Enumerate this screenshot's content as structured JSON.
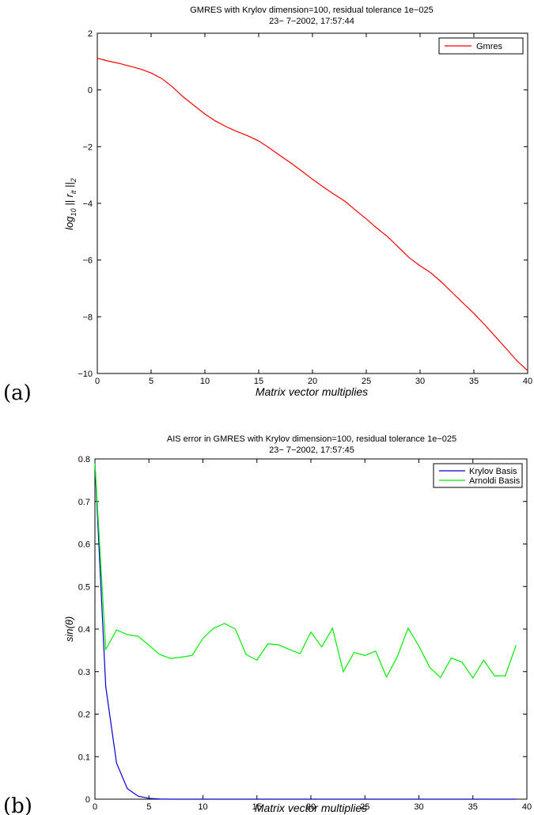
{
  "chart_data": [
    {
      "panel_label": "(a)",
      "type": "line",
      "title": "GMRES with Krylov dimension=100, residual tolerance 1e−025",
      "subtitle": "23− 7−2002, 17:57:44",
      "xlabel": "Matrix vector multiplies",
      "ylabel": "log10 || r_it ||2",
      "ylabel_parts": {
        "main": "log",
        "sub1": "10",
        "mid": " || r",
        "sub2": "it",
        "end": " ||",
        "sub3": "2"
      },
      "xlim": [
        0,
        40
      ],
      "ylim": [
        -10,
        2
      ],
      "xticks": [
        0,
        5,
        10,
        15,
        20,
        25,
        30,
        35,
        40
      ],
      "yticks": [
        2,
        0,
        -2,
        -4,
        -6,
        -8,
        -10
      ],
      "ytick_labels": [
        "2",
        "0",
        "−2",
        "−4",
        "−6",
        "−8",
        "−10"
      ],
      "grid": false,
      "legend_position": "top-right",
      "series": [
        {
          "name": "Gmres",
          "color": "#ff0000",
          "x": [
            0,
            1,
            2,
            3,
            4,
            5,
            6,
            7,
            8,
            9,
            10,
            11,
            12,
            13,
            14,
            15,
            16,
            17,
            18,
            19,
            20,
            21,
            22,
            23,
            24,
            25,
            26,
            27,
            28,
            29,
            30,
            31,
            32,
            33,
            34,
            35,
            36,
            37,
            38,
            39,
            40
          ],
          "y": [
            1.12,
            1.02,
            0.94,
            0.84,
            0.74,
            0.6,
            0.4,
            0.1,
            -0.25,
            -0.55,
            -0.85,
            -1.1,
            -1.3,
            -1.47,
            -1.62,
            -1.8,
            -2.05,
            -2.32,
            -2.58,
            -2.86,
            -3.15,
            -3.42,
            -3.68,
            -3.92,
            -4.24,
            -4.55,
            -4.88,
            -5.18,
            -5.55,
            -5.92,
            -6.2,
            -6.45,
            -6.78,
            -7.15,
            -7.52,
            -7.88,
            -8.28,
            -8.7,
            -9.12,
            -9.55,
            -9.9
          ]
        }
      ]
    },
    {
      "panel_label": "(b)",
      "type": "line",
      "title": "AIS error in GMRES with Krylov dimension=100, residual tolerance 1e−025",
      "subtitle": "23− 7−2002, 17:57:45",
      "xlabel": "Matrix vector multiplies",
      "ylabel": "sin(θ)",
      "xlim": [
        0,
        40
      ],
      "ylim": [
        0,
        0.8
      ],
      "xticks": [
        0,
        5,
        10,
        15,
        20,
        25,
        30,
        35,
        40
      ],
      "yticks": [
        0,
        0.1,
        0.2,
        0.3,
        0.4,
        0.5,
        0.6,
        0.7,
        0.8
      ],
      "grid": false,
      "legend_position": "top-right",
      "series": [
        {
          "name": "Krylov Basis",
          "color": "#0000cc",
          "x": [
            0,
            1,
            2,
            3,
            4,
            5,
            6,
            7,
            8,
            9,
            10,
            11,
            12,
            13,
            14,
            15,
            16,
            17,
            18,
            19,
            20,
            21,
            22,
            23,
            24,
            25,
            26,
            27,
            28,
            29,
            30,
            31,
            32,
            33,
            34,
            35,
            36,
            37,
            38,
            39
          ],
          "y": [
            0.79,
            0.265,
            0.085,
            0.025,
            0.007,
            0.002,
            0.0005,
            0,
            0,
            0,
            0,
            0,
            0,
            0,
            0,
            0,
            0,
            0,
            0,
            0,
            0,
            0,
            0,
            0,
            0,
            0,
            0,
            0,
            0,
            0,
            0,
            0,
            0,
            0,
            0,
            0,
            0,
            0,
            0,
            0
          ]
        },
        {
          "name": "Arnoldi Basis",
          "color": "#00ee00",
          "x": [
            0,
            1,
            2,
            3,
            4,
            5,
            6,
            7,
            8,
            9,
            10,
            11,
            12,
            13,
            14,
            15,
            16,
            17,
            18,
            19,
            20,
            21,
            22,
            23,
            24,
            25,
            26,
            27,
            28,
            29,
            30,
            31,
            32,
            33,
            34,
            35,
            36,
            37,
            38,
            39
          ],
          "y": [
            0.79,
            0.352,
            0.398,
            0.387,
            0.383,
            0.362,
            0.34,
            0.331,
            0.334,
            0.338,
            0.378,
            0.402,
            0.413,
            0.4,
            0.34,
            0.327,
            0.365,
            0.363,
            0.352,
            0.342,
            0.393,
            0.358,
            0.402,
            0.3,
            0.345,
            0.338,
            0.348,
            0.287,
            0.335,
            0.402,
            0.36,
            0.31,
            0.286,
            0.332,
            0.322,
            0.285,
            0.327,
            0.29,
            0.29,
            0.362
          ]
        }
      ]
    }
  ]
}
